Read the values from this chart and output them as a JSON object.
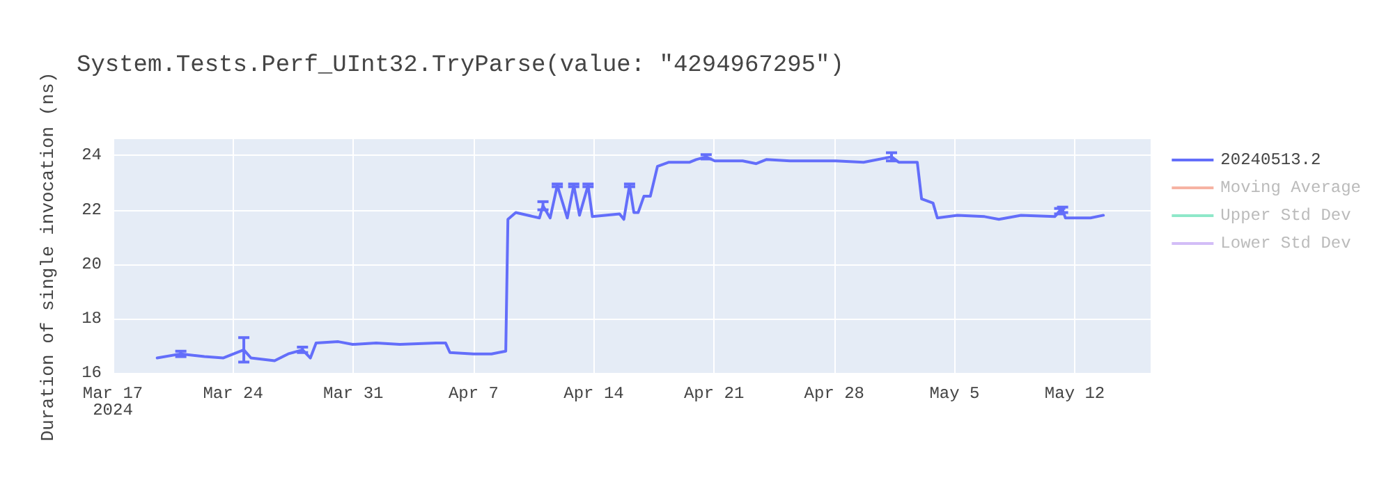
{
  "chart_data": {
    "type": "line",
    "title": "System.Tests.Perf_UInt32.TryParse(value: \"4294967295\")",
    "ylabel": "Duration of single invocation (ns)",
    "x": [
      "2024-03-19T14:00",
      "2024-03-20T23:00",
      "2024-03-22T08:00",
      "2024-03-23T10:00",
      "2024-03-24T15:00",
      "2024-03-25T01:00",
      "2024-03-26T10:00",
      "2024-03-27T05:00",
      "2024-03-28T01:00",
      "2024-03-28T12:00",
      "2024-03-28T20:00",
      "2024-03-30T03:00",
      "2024-03-30T23:00",
      "2024-04-01T08:00",
      "2024-04-02T17:00",
      "2024-04-04T20:00",
      "2024-04-05T09:00",
      "2024-04-05T15:00",
      "2024-04-07T00:00",
      "2024-04-08T01:00",
      "2024-04-08T21:00",
      "2024-04-09T00:00",
      "2024-04-09T11:00",
      "2024-04-10T20:00",
      "2024-04-11T01:00",
      "2024-04-11T11:00",
      "2024-04-11T21:00",
      "2024-04-12T11:00",
      "2024-04-12T20:00",
      "2024-04-13T04:00",
      "2024-04-13T16:00",
      "2024-04-13T22:00",
      "2024-04-15T12:00",
      "2024-04-15T18:00",
      "2024-04-16T02:00",
      "2024-04-16T08:00",
      "2024-04-16T14:00",
      "2024-04-16T22:00",
      "2024-04-17T07:00",
      "2024-04-17T17:00",
      "2024-04-18T09:00",
      "2024-04-19T14:00",
      "2024-04-19T23:00",
      "2024-04-20T13:00",
      "2024-04-21T01:00",
      "2024-04-22T16:00",
      "2024-04-23T11:00",
      "2024-04-24T01:00",
      "2024-04-25T10:00",
      "2024-04-28T02:00",
      "2024-04-29T17:00",
      "2024-05-01T08:00",
      "2024-05-01T18:00",
      "2024-05-02T20:00",
      "2024-05-03T02:00",
      "2024-05-03T18:00",
      "2024-05-04T00:00",
      "2024-05-05T04:00",
      "2024-05-06T18:00",
      "2024-05-07T14:00",
      "2024-05-08T21:00",
      "2024-05-10T20:00",
      "2024-05-11T03:00",
      "2024-05-11T07:00",
      "2024-05-11T11:00",
      "2024-05-12T22:00",
      "2024-05-13T16:00"
    ],
    "series": [
      {
        "name": "20240513.2",
        "color": "#636efa",
        "values": [
          16.55,
          16.7,
          16.6,
          16.55,
          16.85,
          16.55,
          16.45,
          16.7,
          16.85,
          16.55,
          17.1,
          17.15,
          17.05,
          17.1,
          17.05,
          17.1,
          17.1,
          16.75,
          16.7,
          16.7,
          16.8,
          21.65,
          21.9,
          21.7,
          22.15,
          21.7,
          22.9,
          21.7,
          22.9,
          21.8,
          22.9,
          21.75,
          21.85,
          21.65,
          22.9,
          21.9,
          21.9,
          22.5,
          22.5,
          23.6,
          23.75,
          23.75,
          23.85,
          23.95,
          23.8,
          23.8,
          23.7,
          23.85,
          23.8,
          23.8,
          23.75,
          23.95,
          23.75,
          23.75,
          22.4,
          22.25,
          21.7,
          21.8,
          21.75,
          21.65,
          21.8,
          21.75,
          21.95,
          22.0,
          21.7,
          21.7,
          21.8
        ],
        "errors": [
          null,
          0.1,
          null,
          null,
          0.45,
          null,
          null,
          null,
          0.1,
          null,
          null,
          null,
          null,
          null,
          null,
          null,
          null,
          null,
          null,
          null,
          null,
          null,
          null,
          null,
          0.15,
          null,
          0.05,
          null,
          0.05,
          null,
          0.05,
          null,
          null,
          null,
          0.05,
          null,
          null,
          null,
          null,
          null,
          null,
          null,
          null,
          0.08,
          null,
          null,
          null,
          null,
          null,
          null,
          null,
          0.15,
          null,
          null,
          null,
          null,
          null,
          null,
          null,
          null,
          null,
          null,
          0.1,
          0.1,
          null,
          null,
          null
        ]
      },
      {
        "name": "Moving Average",
        "color": "#f6b3a3",
        "values": [
          null,
          null,
          null,
          null,
          null,
          null,
          null,
          null,
          null,
          null,
          null,
          null,
          null,
          null,
          null,
          null,
          null,
          null,
          null,
          null,
          null,
          null,
          null,
          null,
          null,
          null,
          null,
          null,
          null,
          null,
          null,
          null,
          null,
          null,
          null,
          null,
          null,
          null,
          null,
          null,
          null,
          null,
          null,
          null,
          null,
          null,
          null,
          null,
          null,
          null,
          null,
          null,
          null,
          null,
          null,
          null,
          null,
          null,
          null,
          null,
          null,
          null,
          null,
          null,
          null,
          null,
          null
        ]
      },
      {
        "name": "Upper Std Dev",
        "color": "#8ee8c9",
        "values": [
          null,
          null,
          null,
          null,
          null,
          null,
          null,
          null,
          null,
          null,
          null,
          null,
          null,
          null,
          null,
          null,
          null,
          null,
          null,
          null,
          null,
          null,
          null,
          null,
          null,
          null,
          null,
          null,
          null,
          null,
          null,
          null,
          null,
          null,
          null,
          null,
          null,
          null,
          null,
          null,
          null,
          null,
          null,
          null,
          null,
          null,
          null,
          null,
          null,
          null,
          null,
          null,
          null,
          null,
          null,
          null,
          null,
          null,
          null,
          null,
          null,
          null,
          null,
          null,
          null,
          null,
          null
        ]
      },
      {
        "name": "Lower Std Dev",
        "color": "#d3bdf7",
        "values": [
          null,
          null,
          null,
          null,
          null,
          null,
          null,
          null,
          null,
          null,
          null,
          null,
          null,
          null,
          null,
          null,
          null,
          null,
          null,
          null,
          null,
          null,
          null,
          null,
          null,
          null,
          null,
          null,
          null,
          null,
          null,
          null,
          null,
          null,
          null,
          null,
          null,
          null,
          null,
          null,
          null,
          null,
          null,
          null,
          null,
          null,
          null,
          null,
          null,
          null,
          null,
          null,
          null,
          null,
          null,
          null,
          null,
          null,
          null,
          null,
          null,
          null,
          null,
          null,
          null,
          null,
          null
        ]
      }
    ],
    "xlim": [
      "2024-03-17",
      "2024-05-16T10:00"
    ],
    "xticks": [
      {
        "value": "2024-03-17",
        "label": "Mar 17\n2024"
      },
      {
        "value": "2024-03-24",
        "label": "Mar 24"
      },
      {
        "value": "2024-03-31",
        "label": "Mar 31"
      },
      {
        "value": "2024-04-07",
        "label": "Apr 7"
      },
      {
        "value": "2024-04-14",
        "label": "Apr 14"
      },
      {
        "value": "2024-04-21",
        "label": "Apr 21"
      },
      {
        "value": "2024-04-28",
        "label": "Apr 28"
      },
      {
        "value": "2024-05-05",
        "label": "May 5"
      },
      {
        "value": "2024-05-12",
        "label": "May 12"
      }
    ],
    "ylim": [
      15.95,
      24.6
    ],
    "yticks": [
      16,
      18,
      20,
      22,
      24
    ],
    "grid": true,
    "legend": "top right",
    "marker": "none",
    "line_style": "solid"
  }
}
